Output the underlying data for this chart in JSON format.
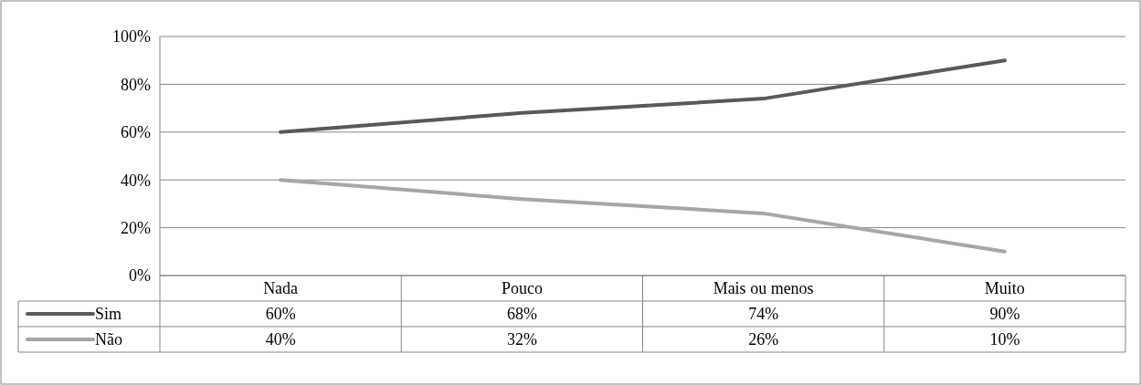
{
  "chart_data": {
    "type": "line",
    "categories": [
      "Nada",
      "Pouco",
      "Mais ou menos",
      "Muito"
    ],
    "series": [
      {
        "name": "Sim",
        "color": "#595959",
        "values": [
          60,
          68,
          74,
          90
        ],
        "value_labels": [
          "60%",
          "68%",
          "74%",
          "90%"
        ]
      },
      {
        "name": "Não",
        "color": "#a6a6a6",
        "values": [
          40,
          32,
          26,
          10
        ],
        "value_labels": [
          "40%",
          "32%",
          "26%",
          "10%"
        ]
      }
    ],
    "ylim": [
      0,
      100
    ],
    "yticks": [
      {
        "value": 0,
        "label": "0%"
      },
      {
        "value": 20,
        "label": "20%"
      },
      {
        "value": 40,
        "label": "40%"
      },
      {
        "value": 60,
        "label": "60%"
      },
      {
        "value": 80,
        "label": "80%"
      },
      {
        "value": 100,
        "label": "100%"
      }
    ],
    "grid": "y",
    "legend": "bottom left",
    "marker": "none",
    "line_style": "solid"
  }
}
